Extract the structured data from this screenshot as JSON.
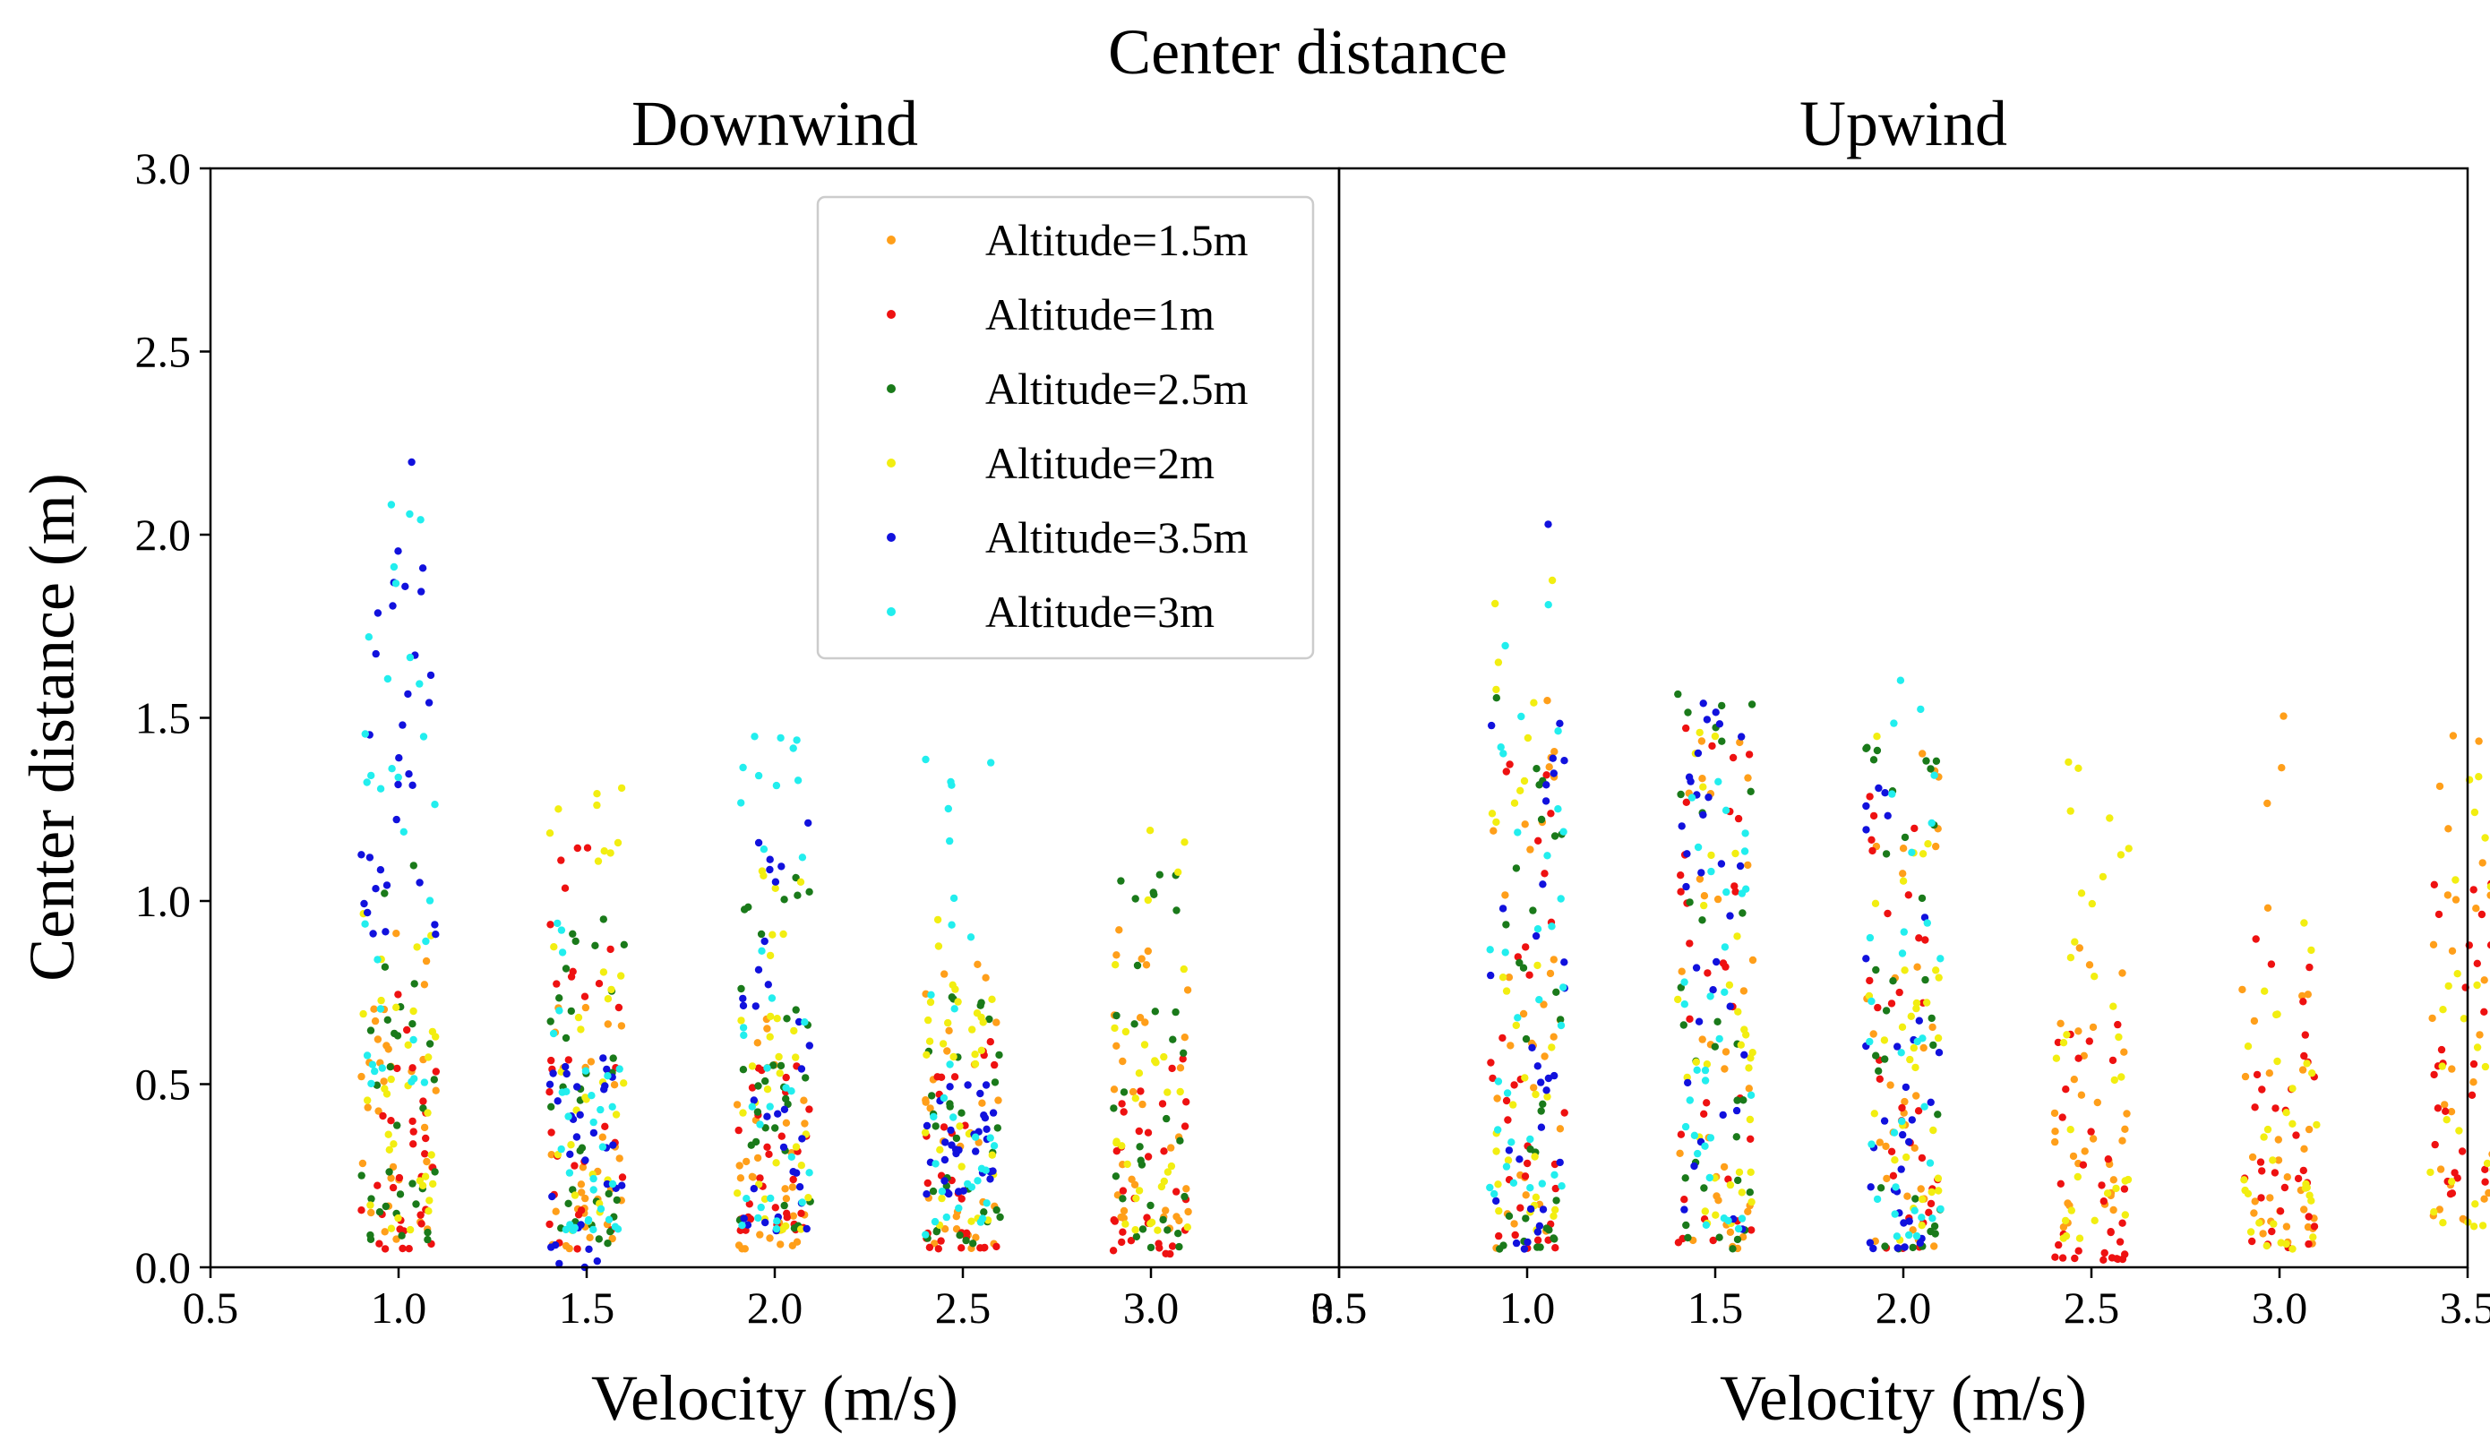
{
  "chart_data": {
    "type": "scatter",
    "title": "Center distance",
    "ylabel": "Center distance (m)",
    "ylim": [
      0,
      3.0
    ],
    "yticks": [
      "0.0",
      "0.5",
      "1.0",
      "1.5",
      "2.0",
      "2.5",
      "3.0"
    ],
    "yticks_values": [
      0,
      0.5,
      1.0,
      1.5,
      2.0,
      2.5,
      3.0
    ],
    "legend": {
      "placement": "upper-center of left panel",
      "entries": [
        {
          "name": "Altitude=1.5m",
          "color": "#FF9F1A"
        },
        {
          "name": "Altitude=1m",
          "color": "#EE1111"
        },
        {
          "name": "Altitude=2.5m",
          "color": "#1A7A1A"
        },
        {
          "name": "Altitude=2m",
          "color": "#F2EE11"
        },
        {
          "name": "Altitude=3.5m",
          "color": "#1111DD"
        },
        {
          "name": "Altitude=3m",
          "color": "#22EEEE"
        }
      ]
    },
    "panels": [
      {
        "title": "Downwind",
        "xlabel": "Velocity (m/s)",
        "xlim": [
          0.5,
          3.5
        ],
        "xticks": [
          "0.5",
          "1.0",
          "1.5",
          "2.0",
          "2.5",
          "3.0",
          "3.5"
        ],
        "xticks_values": [
          0.5,
          1.0,
          1.5,
          2.0,
          2.5,
          3.0,
          3.5
        ],
        "groups": [
          {
            "velocity": 1.0,
            "series": {
              "Altitude=1.5m": [
                0.05,
                0.95
              ],
              "Altitude=1m": [
                0.05,
                0.75
              ],
              "Altitude=2.5m": [
                0.05,
                1.15
              ],
              "Altitude=2m": [
                0.1,
                1.0
              ],
              "Altitude=3.5m": [
                0.9,
                2.26
              ],
              "Altitude=3m": [
                0.5,
                2.1
              ]
            }
          },
          {
            "velocity": 1.5,
            "series": {
              "Altitude=1.5m": [
                0.05,
                0.75
              ],
              "Altitude=1m": [
                0.05,
                1.22
              ],
              "Altitude=2.5m": [
                0.05,
                1.05
              ],
              "Altitude=2m": [
                0.1,
                1.33
              ],
              "Altitude=3.5m": [
                0.0,
                0.6
              ],
              "Altitude=3m": [
                0.1,
                1.1
              ]
            }
          },
          {
            "velocity": 2.0,
            "series": {
              "Altitude=1.5m": [
                0.05,
                0.7
              ],
              "Altitude=1m": [
                0.1,
                0.6
              ],
              "Altitude=2.5m": [
                0.1,
                1.07
              ],
              "Altitude=2m": [
                0.1,
                1.2
              ],
              "Altitude=3.5m": [
                0.1,
                1.27
              ],
              "Altitude=3m": [
                0.1,
                1.53
              ]
            }
          },
          {
            "velocity": 2.5,
            "series": {
              "Altitude=1.5m": [
                0.05,
                0.9
              ],
              "Altitude=1m": [
                0.05,
                0.68
              ],
              "Altitude=2.5m": [
                0.05,
                0.75
              ],
              "Altitude=2m": [
                0.1,
                0.95
              ],
              "Altitude=3.5m": [
                0.2,
                0.5
              ],
              "Altitude=3m": [
                0.05,
                1.42
              ]
            }
          },
          {
            "velocity": 3.0,
            "series": {
              "Altitude=1.5m": [
                0.1,
                1.0
              ],
              "Altitude=1m": [
                0.03,
                0.6
              ],
              "Altitude=2.5m": [
                0.05,
                1.12
              ],
              "Altitude=2m": [
                0.1,
                1.29
              ]
            }
          }
        ]
      },
      {
        "title": "Upwind",
        "xlabel": "Velocity (m/s)",
        "xlim": [
          0.5,
          3.5
        ],
        "xticks": [
          "0.5",
          "1.0",
          "1.5",
          "2.0",
          "2.5",
          "3.0",
          "3.5"
        ],
        "xticks_values": [
          0.5,
          1.0,
          1.5,
          2.0,
          2.5,
          3.0,
          3.5
        ],
        "groups": [
          {
            "velocity": 1.0,
            "series": {
              "Altitude=1.5m": [
                0.05,
                1.6
              ],
              "Altitude=1m": [
                0.05,
                1.4
              ],
              "Altitude=2.5m": [
                0.05,
                1.58
              ],
              "Altitude=2m": [
                0.1,
                1.93
              ],
              "Altitude=3.5m": [
                0.05,
                2.11
              ],
              "Altitude=3m": [
                0.2,
                1.85
              ]
            }
          },
          {
            "velocity": 1.5,
            "series": {
              "Altitude=1.5m": [
                0.05,
                1.55
              ],
              "Altitude=1m": [
                0.05,
                1.5
              ],
              "Altitude=2.5m": [
                0.05,
                1.62
              ],
              "Altitude=2m": [
                0.1,
                1.5
              ],
              "Altitude=3.5m": [
                0.1,
                1.55
              ],
              "Altitude=3m": [
                0.1,
                1.4
              ]
            }
          },
          {
            "velocity": 2.0,
            "series": {
              "Altitude=1.5m": [
                0.05,
                1.45
              ],
              "Altitude=1m": [
                0.05,
                1.3
              ],
              "Altitude=2.5m": [
                0.05,
                1.48
              ],
              "Altitude=2m": [
                0.05,
                1.45
              ],
              "Altitude=3.5m": [
                0.05,
                1.35
              ],
              "Altitude=3m": [
                0.05,
                1.67
              ]
            }
          },
          {
            "velocity": 2.5,
            "series": {
              "Altitude=1.5m": [
                0.05,
                0.9
              ],
              "Altitude=1m": [
                0.02,
                0.72
              ],
              "Altitude=2m": [
                0.05,
                1.43
              ]
            }
          },
          {
            "velocity": 3.0,
            "series": {
              "Altitude=1.5m": [
                0.05,
                1.63
              ],
              "Altitude=1m": [
                0.05,
                0.9
              ],
              "Altitude=2m": [
                0.05,
                1.0
              ]
            }
          },
          {
            "velocity": 3.5,
            "series": {
              "Altitude=1.5m": [
                0.1,
                1.54
              ],
              "Altitude=1m": [
                0.2,
                1.05
              ],
              "Altitude=2m": [
                0.1,
                1.4
              ]
            }
          }
        ]
      }
    ]
  }
}
